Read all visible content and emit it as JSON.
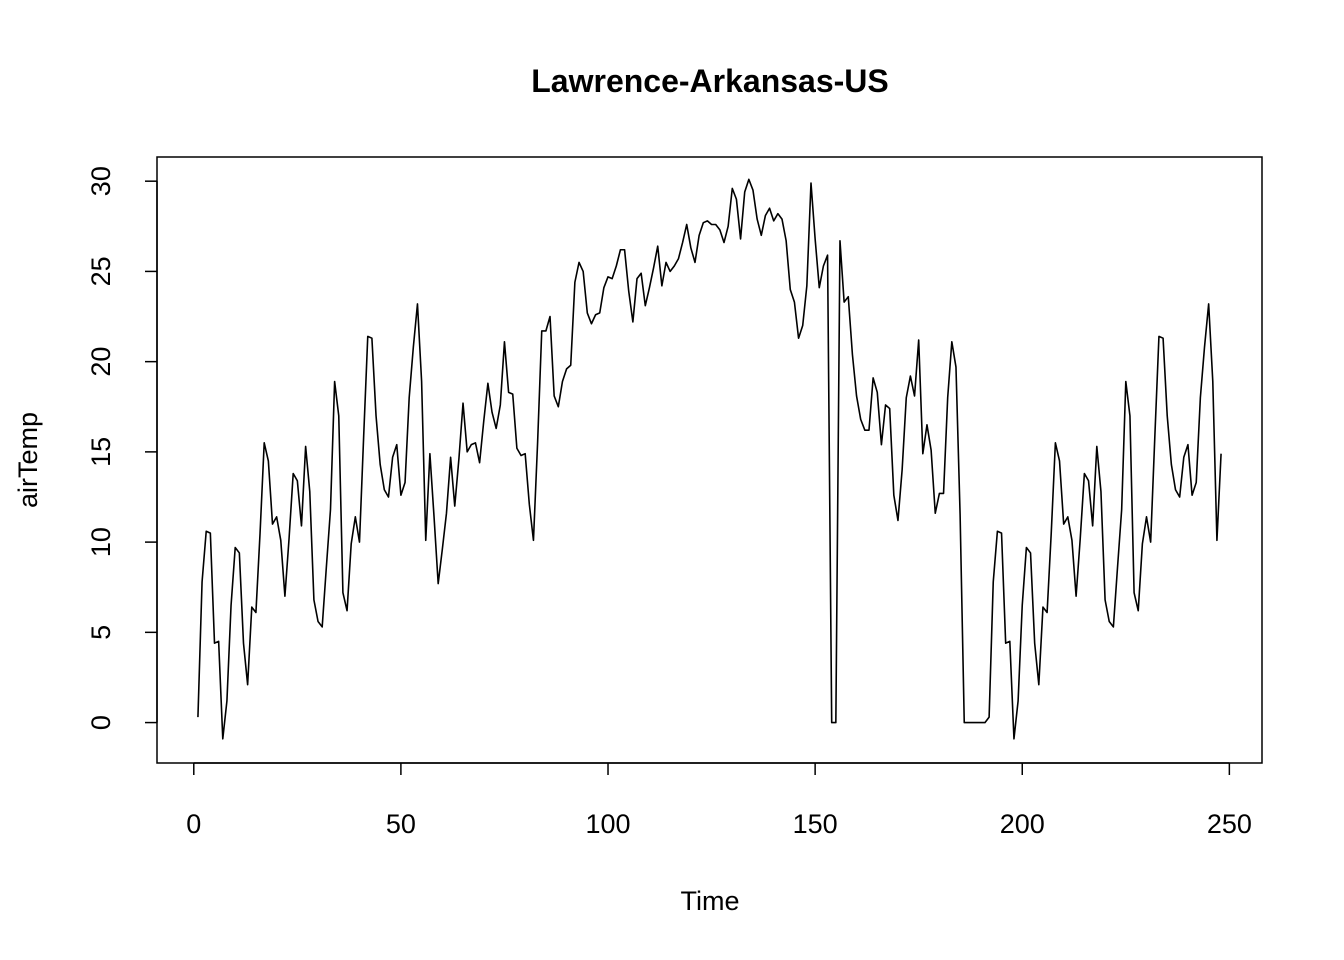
{
  "chart_data": {
    "type": "line",
    "title": "Lawrence-Arkansas-US",
    "x_label": "Time",
    "y_label": "airTemp",
    "x": [
      1,
      2,
      3,
      4,
      5,
      6,
      7,
      8,
      9,
      10,
      11,
      12,
      13,
      14,
      15,
      16,
      17,
      18,
      19,
      20,
      21,
      22,
      23,
      24,
      25,
      26,
      27,
      28,
      29,
      30,
      31,
      32,
      33,
      34,
      35,
      36,
      37,
      38,
      39,
      40,
      41,
      42,
      43,
      44,
      45,
      46,
      47,
      48,
      49,
      50,
      51,
      52,
      53,
      54,
      55,
      56,
      57,
      58,
      59,
      60,
      61,
      62,
      63,
      64,
      65,
      66,
      67,
      68,
      69,
      70,
      71,
      72,
      73,
      74,
      75,
      76,
      77,
      78,
      79,
      80,
      81,
      82,
      83,
      84,
      85,
      86,
      87,
      88,
      89,
      90,
      91,
      92,
      93,
      94,
      95,
      96,
      97,
      98,
      99,
      100,
      101,
      102,
      103,
      104,
      105,
      106,
      107,
      108,
      109,
      110,
      111,
      112,
      113,
      114,
      115,
      116,
      117,
      118,
      119,
      120,
      121,
      122,
      123,
      124,
      125,
      126,
      127,
      128,
      129,
      130,
      131,
      132,
      133,
      134,
      135,
      136,
      137,
      138,
      139,
      140,
      141,
      142,
      143,
      144,
      145,
      146,
      147,
      148,
      149,
      150,
      151,
      152,
      153,
      154,
      155,
      156,
      157,
      158,
      159,
      160,
      161,
      162,
      163,
      164,
      165,
      166,
      167,
      168,
      169,
      170,
      171,
      172,
      173,
      174,
      175,
      176,
      177,
      178,
      179,
      180,
      181,
      182,
      183,
      184,
      185,
      186,
      187,
      188,
      189,
      190,
      191,
      192,
      193,
      194,
      195,
      196,
      197,
      198,
      199,
      200,
      201,
      202,
      203,
      204,
      205,
      206,
      207,
      208,
      209,
      210,
      211,
      212,
      213,
      214,
      215,
      216,
      217,
      218,
      219,
      220,
      221,
      222,
      223,
      224,
      225,
      226,
      227,
      228,
      229,
      230,
      231,
      232,
      233,
      234,
      235,
      236,
      237,
      238,
      239,
      240,
      241,
      242,
      243,
      244,
      245,
      246,
      247,
      248
    ],
    "series": [
      {
        "name": "airTemp",
        "color": "#000000",
        "values": [
          0.3,
          7.8,
          10.6,
          10.5,
          4.4,
          4.5,
          -0.9,
          1.2,
          6.5,
          9.7,
          9.4,
          4.4,
          2.1,
          6.4,
          6.1,
          10.5,
          15.5,
          14.5,
          11.0,
          11.4,
          10.1,
          7.0,
          10.2,
          13.8,
          13.4,
          10.9,
          15.3,
          12.8,
          6.8,
          5.6,
          5.3,
          8.6,
          11.8,
          18.9,
          17.0,
          7.2,
          6.2,
          9.9,
          11.4,
          10.0,
          15.8,
          21.4,
          21.3,
          17.0,
          14.3,
          12.9,
          12.5,
          14.7,
          15.4,
          12.6,
          13.3,
          18.0,
          20.8,
          23.2,
          18.9,
          10.1,
          14.9,
          11.4,
          7.7,
          9.6,
          11.6,
          14.7,
          12.0,
          14.6,
          17.7,
          15.0,
          15.4,
          15.5,
          14.4,
          16.7,
          18.8,
          17.2,
          16.3,
          17.6,
          21.1,
          18.3,
          18.2,
          15.2,
          14.8,
          14.9,
          12.1,
          10.1,
          15.5,
          21.7,
          21.7,
          22.5,
          18.1,
          17.5,
          18.9,
          19.6,
          19.8,
          24.4,
          25.5,
          25.0,
          22.7,
          22.1,
          22.6,
          22.7,
          24.1,
          24.7,
          24.6,
          25.3,
          26.2,
          26.2,
          23.9,
          22.2,
          24.6,
          24.9,
          23.1,
          24.1,
          25.2,
          26.4,
          24.2,
          25.5,
          25.0,
          25.3,
          25.7,
          26.6,
          27.6,
          26.3,
          25.5,
          27.0,
          27.7,
          27.8,
          27.6,
          27.6,
          27.3,
          26.6,
          27.5,
          29.6,
          29.0,
          26.8,
          29.4,
          30.1,
          29.5,
          27.9,
          27.0,
          28.1,
          28.5,
          27.8,
          28.2,
          27.9,
          26.7,
          24.0,
          23.3,
          21.3,
          22.0,
          24.2,
          29.9,
          26.8,
          24.1,
          25.3,
          25.9,
          0,
          0,
          26.7,
          23.3,
          23.6,
          20.4,
          18.1,
          16.8,
          16.2,
          16.2,
          19.1,
          18.3,
          15.4,
          17.6,
          17.4,
          12.6,
          11.2,
          14.0,
          18.0,
          19.2,
          18.1,
          21.2,
          14.9,
          16.5,
          15.1,
          11.6,
          12.7,
          12.7,
          18.0,
          21.1,
          19.7,
          11.5,
          0,
          0,
          0,
          0,
          0,
          0,
          0.3,
          7.8,
          10.6,
          10.5,
          4.4,
          4.5,
          -0.9,
          1.2,
          6.5,
          9.7,
          9.4,
          4.4,
          2.1,
          6.4,
          6.1,
          10.5,
          15.5,
          14.5,
          11.0,
          11.4,
          10.1,
          7.0,
          10.2,
          13.8,
          13.4,
          10.9,
          15.3,
          12.8,
          6.8,
          5.6,
          5.3,
          8.6,
          11.8,
          18.9,
          17.0,
          7.2,
          6.2,
          9.9,
          11.4,
          10.0,
          15.8,
          21.4,
          21.3,
          17.0,
          14.3,
          12.9,
          12.5,
          14.7,
          15.4,
          12.6,
          13.3,
          18.0,
          20.8,
          23.2,
          18.9,
          10.1,
          14.9
        ]
      }
    ],
    "xlim": [
      -8.88,
      257.88
    ],
    "ylim": [
      -2.24,
      31.34
    ],
    "xticks": [
      0,
      50,
      100,
      150,
      200,
      250
    ],
    "yticks": [
      0,
      5,
      10,
      15,
      20,
      25,
      30
    ],
    "grid": false
  }
}
